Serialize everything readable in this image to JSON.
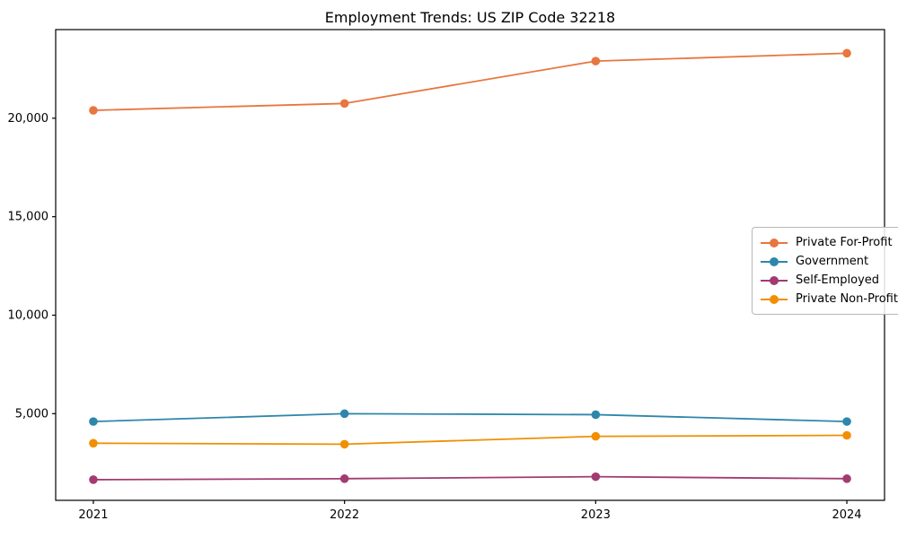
{
  "chart_data": {
    "type": "line",
    "title": "Employment Trends: US ZIP Code 32218",
    "xlabel": "",
    "ylabel": "",
    "x": [
      2021,
      2022,
      2023,
      2024
    ],
    "xticklabels": [
      "2021",
      "2022",
      "2023",
      "2024"
    ],
    "xlim": [
      2020.85,
      2024.15
    ],
    "ylim": [
      600,
      24500
    ],
    "yticks": [
      5000,
      10000,
      15000,
      20000
    ],
    "yticklabels": [
      "5,000",
      "10,000",
      "15,000",
      "20,000"
    ],
    "grid": false,
    "legend_position": "center right",
    "series": [
      {
        "name": "Private For-Profit",
        "color": "#E8763F",
        "values": [
          20400,
          20750,
          22900,
          23300
        ]
      },
      {
        "name": "Government",
        "color": "#2E86AB",
        "values": [
          4600,
          5000,
          4950,
          4600
        ]
      },
      {
        "name": "Self-Employed",
        "color": "#A23B72",
        "values": [
          1650,
          1700,
          1800,
          1700
        ]
      },
      {
        "name": "Private Non-Profit",
        "color": "#F18F01",
        "values": [
          3500,
          3450,
          3850,
          3900
        ]
      }
    ]
  }
}
